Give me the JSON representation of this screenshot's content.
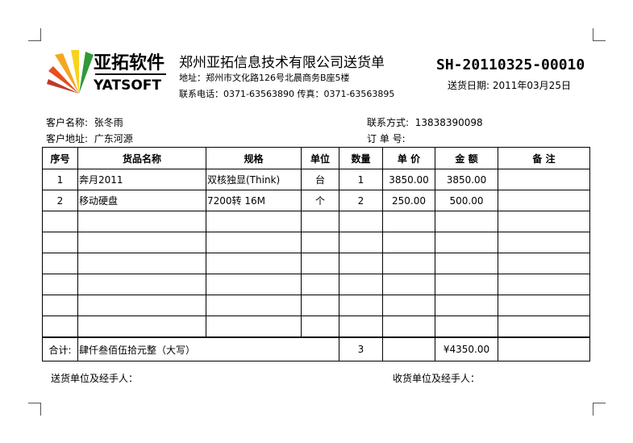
{
  "logo": {
    "cn": "亚拓软件",
    "en": "YATSOFT"
  },
  "header": {
    "company": "郑州亚拓信息技术有限公司送货单",
    "address": "地址：郑州市文化路126号北晨商务B座5楼",
    "contact": "联系电话：0371-63563890 传真：0371-63563895",
    "doc_no": "SH-20110325-00010",
    "date_label": "送货日期:",
    "date": "2011年03月25日"
  },
  "customer": {
    "name_label": "客户名称:",
    "name": "张冬雨",
    "address_label": "客户地址:",
    "address": "广东河源",
    "phone_label": "联系方式:",
    "phone": "13838390098",
    "order_label": "订 单 号:",
    "order": ""
  },
  "table": {
    "headers": [
      "序号",
      "货品名称",
      "规格",
      "单位",
      "数量",
      "单 价",
      "金 额",
      "备    注"
    ],
    "rows": [
      [
        "1",
        "奔月2011",
        "双核独显(Think)",
        "台",
        "1",
        "3850.00",
        "3850.00",
        ""
      ],
      [
        "2",
        "移动硬盘",
        "7200转 16M",
        "个",
        "2",
        "250.00",
        "500.00",
        ""
      ],
      [
        "",
        "",
        "",
        "",
        "",
        "",
        "",
        ""
      ],
      [
        "",
        "",
        "",
        "",
        "",
        "",
        "",
        ""
      ],
      [
        "",
        "",
        "",
        "",
        "",
        "",
        "",
        ""
      ],
      [
        "",
        "",
        "",
        "",
        "",
        "",
        "",
        ""
      ],
      [
        "",
        "",
        "",
        "",
        "",
        "",
        "",
        ""
      ],
      [
        "",
        "",
        "",
        "",
        "",
        "",
        "",
        ""
      ]
    ],
    "total": {
      "label": "合计:",
      "amount_words": "肆仟叁佰伍拾元整（大写）",
      "quantity": "3",
      "amount": "¥4350.00"
    }
  },
  "footer": {
    "sender": "送货单位及经手人：",
    "receiver": "收货单位及经手人："
  }
}
